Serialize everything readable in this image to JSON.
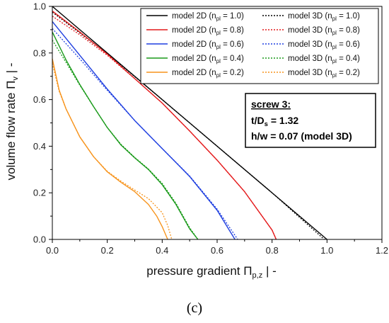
{
  "panel_label": "(c)",
  "chart_data": {
    "type": "line",
    "xlabel": "pressure gradient Π_{p,z} | -",
    "ylabel": "volume flow rate Π_v | -",
    "xlim": [
      0.0,
      1.2
    ],
    "ylim": [
      0.0,
      1.0
    ],
    "x_ticks": [
      "0.0",
      "0.2",
      "0.4",
      "0.6",
      "0.8",
      "1.0",
      "1.2"
    ],
    "y_ticks": [
      "0.0",
      "0.2",
      "0.4",
      "0.6",
      "0.8",
      "1.0"
    ],
    "grid": false,
    "legend_position": "top-right",
    "series": [
      {
        "name": "model 2D (n_pl = 1.0)",
        "color": "#000000",
        "style": "solid",
        "x": [
          0.0,
          1.0
        ],
        "y": [
          1.0,
          0.0
        ]
      },
      {
        "name": "model 3D (n_pl = 1.0)",
        "color": "#000000",
        "style": "dotted",
        "x": [
          0.0,
          0.2,
          0.4,
          0.6,
          0.8,
          0.99
        ],
        "y": [
          0.975,
          0.797,
          0.6,
          0.4,
          0.2,
          0.0
        ]
      },
      {
        "name": "model 2D (n_pl = 0.8)",
        "color": "#e41a1c",
        "style": "solid",
        "x": [
          0.0,
          0.1,
          0.2,
          0.3,
          0.4,
          0.5,
          0.6,
          0.7,
          0.8,
          0.815
        ],
        "y": [
          0.98,
          0.89,
          0.795,
          0.69,
          0.585,
          0.465,
          0.34,
          0.205,
          0.04,
          0.0
        ]
      },
      {
        "name": "model 3D (n_pl = 0.8)",
        "color": "#e41a1c",
        "style": "dotted",
        "x": [
          0.0,
          0.1,
          0.2,
          0.3,
          0.4,
          0.5,
          0.6,
          0.7,
          0.8,
          0.815
        ],
        "y": [
          0.958,
          0.878,
          0.79,
          0.69,
          0.585,
          0.465,
          0.34,
          0.205,
          0.04,
          0.0
        ]
      },
      {
        "name": "model 2D (n_pl = 0.6)",
        "color": "#1f3fe0",
        "style": "solid",
        "x": [
          0.0,
          0.1,
          0.2,
          0.3,
          0.4,
          0.5,
          0.6,
          0.665
        ],
        "y": [
          0.935,
          0.79,
          0.645,
          0.51,
          0.39,
          0.27,
          0.125,
          0.0
        ]
      },
      {
        "name": "model 3D (n_pl = 0.6)",
        "color": "#1f3fe0",
        "style": "dotted",
        "x": [
          0.0,
          0.1,
          0.2,
          0.3,
          0.4,
          0.5,
          0.6,
          0.675
        ],
        "y": [
          0.905,
          0.775,
          0.64,
          0.51,
          0.39,
          0.272,
          0.13,
          0.0
        ]
      },
      {
        "name": "model 2D (n_pl = 0.4)",
        "color": "#1a9a1a",
        "style": "solid",
        "x": [
          0.0,
          0.05,
          0.1,
          0.15,
          0.2,
          0.25,
          0.3,
          0.35,
          0.4,
          0.45,
          0.5,
          0.53
        ],
        "y": [
          0.89,
          0.77,
          0.665,
          0.57,
          0.48,
          0.405,
          0.35,
          0.3,
          0.235,
          0.15,
          0.045,
          0.0
        ]
      },
      {
        "name": "model 3D (n_pl = 0.4)",
        "color": "#1a9a1a",
        "style": "dotted",
        "x": [
          0.0,
          0.05,
          0.1,
          0.15,
          0.2,
          0.25,
          0.3,
          0.35,
          0.4,
          0.45,
          0.5,
          0.53
        ],
        "y": [
          0.855,
          0.76,
          0.662,
          0.57,
          0.48,
          0.408,
          0.352,
          0.302,
          0.24,
          0.155,
          0.05,
          0.0
        ]
      },
      {
        "name": "model 2D (n_pl = 0.2)",
        "color": "#f7941d",
        "style": "solid",
        "x": [
          0.0,
          0.025,
          0.05,
          0.1,
          0.15,
          0.2,
          0.25,
          0.3,
          0.35,
          0.38,
          0.4,
          0.42
        ],
        "y": [
          0.775,
          0.64,
          0.56,
          0.44,
          0.355,
          0.29,
          0.245,
          0.205,
          0.15,
          0.1,
          0.055,
          0.0
        ]
      },
      {
        "name": "model 3D (n_pl = 0.2)",
        "color": "#f7941d",
        "style": "dotted",
        "x": [
          0.0,
          0.025,
          0.05,
          0.1,
          0.15,
          0.2,
          0.25,
          0.3,
          0.35,
          0.4,
          0.42,
          0.435
        ],
        "y": [
          0.755,
          0.635,
          0.56,
          0.44,
          0.355,
          0.292,
          0.25,
          0.212,
          0.175,
          0.115,
          0.06,
          0.0
        ]
      }
    ],
    "annotation": {
      "line1": "screw 3:",
      "line2_main": "t/D",
      "line2_sub": "s",
      "line2_rest": " = 1.32",
      "line3": "h/w = 0.07 (model 3D)"
    },
    "legend_items": [
      {
        "model": "model 2D",
        "value": " = 1.0)",
        "color": "#000000",
        "style": "solid"
      },
      {
        "model": "model 3D",
        "value": " = 1.0)",
        "color": "#000000",
        "style": "dotted"
      },
      {
        "model": "model 2D",
        "value": " = 0.8)",
        "color": "#e41a1c",
        "style": "solid"
      },
      {
        "model": "model 3D",
        "value": " = 0.8)",
        "color": "#e41a1c",
        "style": "dotted"
      },
      {
        "model": "model 2D",
        "value": " = 0.6)",
        "color": "#1f3fe0",
        "style": "solid"
      },
      {
        "model": "model 3D",
        "value": " = 0.6)",
        "color": "#1f3fe0",
        "style": "dotted"
      },
      {
        "model": "model 2D",
        "value": " = 0.4)",
        "color": "#1a9a1a",
        "style": "solid"
      },
      {
        "model": "model 3D",
        "value": " = 0.4)",
        "color": "#1a9a1a",
        "style": "dotted"
      },
      {
        "model": "model 2D",
        "value": " = 0.2)",
        "color": "#f7941d",
        "style": "solid"
      },
      {
        "model": "model 3D",
        "value": " = 0.2)",
        "color": "#f7941d",
        "style": "dotted"
      }
    ],
    "legend_symbol_n": "(n",
    "legend_symbol_sub": "pl",
    "xlabel_parts": {
      "main": "pressure gradient Π",
      "sub": "p,z",
      "rest": "  |  -"
    },
    "ylabel_parts": {
      "main": "volume flow rate Π",
      "sub": "v",
      "rest": "  |  -"
    }
  }
}
